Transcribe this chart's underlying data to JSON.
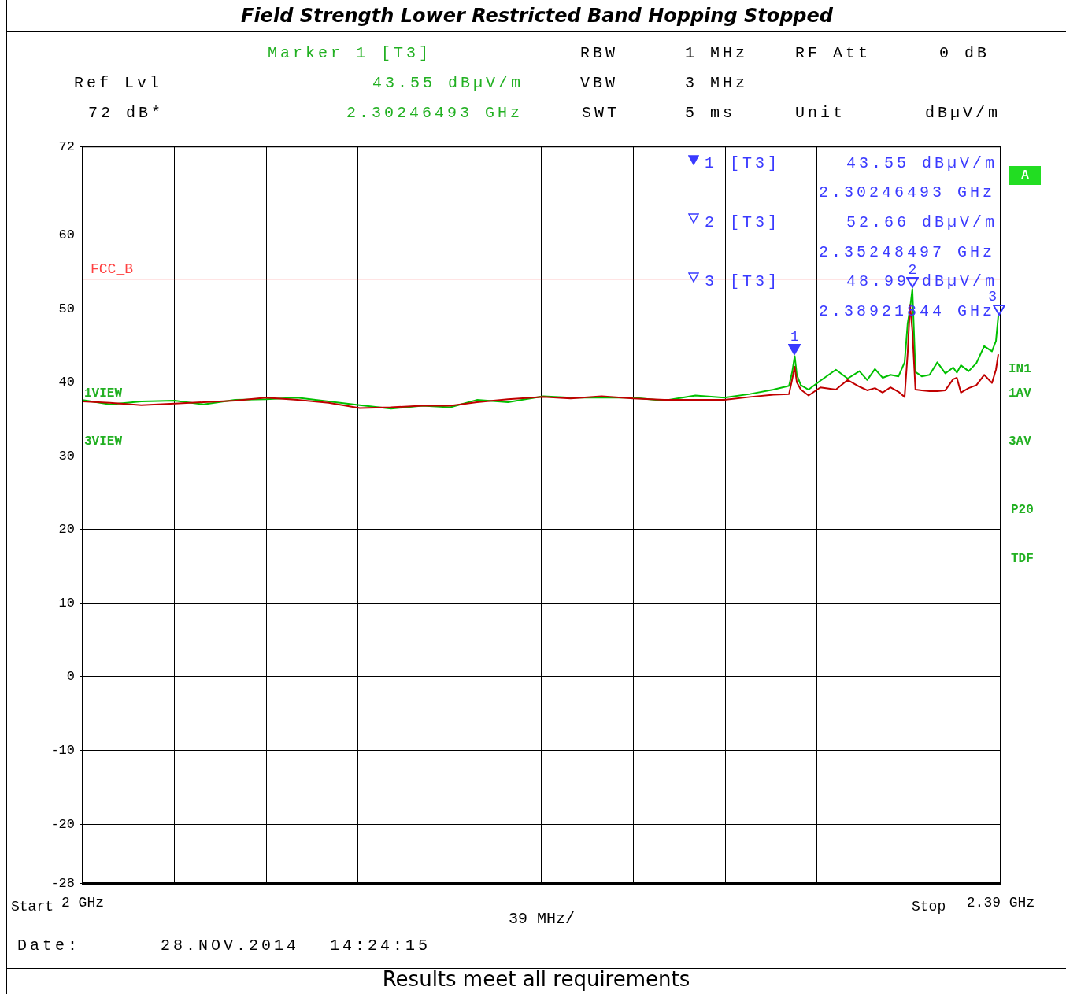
{
  "chart_data": {
    "type": "line",
    "title": "Field Strength Lower Restricted Band Hopping Stopped",
    "x": [
      2.0,
      2.0116,
      2.0249,
      2.0391,
      2.0514,
      2.0647,
      2.0779,
      2.0912,
      2.1045,
      2.1177,
      2.131,
      2.1443,
      2.1562,
      2.1675,
      2.1807,
      2.1957,
      2.2073,
      2.2205,
      2.2338,
      2.2471,
      2.2603,
      2.2726,
      2.2835,
      2.2935,
      2.3001,
      2.3015,
      2.3025,
      2.3034,
      2.3051,
      2.3084,
      2.3134,
      2.32,
      2.325,
      2.33,
      2.3333,
      2.3366,
      2.3399,
      2.3432,
      2.3466,
      2.3492,
      2.3505,
      2.3515,
      2.3525,
      2.3538,
      2.3565,
      2.3598,
      2.3631,
      2.3665,
      2.3698,
      2.3714,
      2.3731,
      2.3764,
      2.3797,
      2.383,
      2.3863,
      2.388,
      2.389
    ],
    "series": [
      {
        "color": "#00c000",
        "values": [
          37.6,
          37.0,
          37.4,
          37.5,
          37.0,
          37.6,
          37.7,
          37.9,
          37.4,
          36.9,
          36.4,
          36.8,
          36.6,
          37.6,
          37.3,
          38.1,
          37.9,
          37.9,
          37.9,
          37.5,
          38.2,
          37.9,
          38.4,
          39.0,
          39.5,
          41.5,
          43.55,
          41.0,
          39.6,
          39.0,
          40.2,
          41.7,
          40.5,
          41.5,
          40.3,
          41.8,
          40.6,
          41.0,
          40.8,
          42.7,
          48.0,
          50.0,
          52.66,
          41.4,
          40.8,
          41.0,
          42.7,
          41.2,
          42.0,
          41.3,
          42.3,
          41.5,
          42.6,
          44.9,
          44.2,
          45.6,
          48.99
        ]
      },
      {
        "color": "#c00000",
        "values": [
          37.4,
          37.2,
          36.9,
          37.1,
          37.3,
          37.5,
          37.9,
          37.6,
          37.2,
          36.5,
          36.6,
          36.8,
          36.8,
          37.3,
          37.7,
          38.0,
          37.8,
          38.1,
          37.8,
          37.6,
          37.6,
          37.6,
          38.0,
          38.3,
          38.4,
          40.5,
          42.1,
          40.0,
          39.0,
          38.2,
          39.3,
          39.0,
          40.3,
          39.4,
          38.9,
          39.2,
          38.6,
          39.3,
          38.7,
          38.0,
          44.0,
          50.5,
          47.0,
          39.0,
          38.9,
          38.8,
          38.8,
          38.9,
          40.4,
          40.6,
          38.6,
          39.2,
          39.6,
          41.0,
          39.9,
          41.7,
          43.8
        ]
      }
    ],
    "xlabel": "39 MHz/",
    "xlim": [
      2,
      2.39
    ],
    "xticks": [
      {
        "value": 2,
        "label": "2 GHz"
      },
      {
        "value": 2.039,
        "label": null
      },
      {
        "value": 2.078,
        "label": null
      },
      {
        "value": 2.117,
        "label": null
      },
      {
        "value": 2.156,
        "label": null
      },
      {
        "value": 2.195,
        "label": null
      },
      {
        "value": 2.234,
        "label": null
      },
      {
        "value": 2.273,
        "label": null
      },
      {
        "value": 2.312,
        "label": null
      },
      {
        "value": 2.351,
        "label": null
      },
      {
        "value": 2.39,
        "label": "2.39 GHz"
      }
    ],
    "ylim": [
      -28,
      72
    ],
    "yticks": [
      72,
      {
        "value": 70,
        "label": null
      },
      60,
      50,
      40,
      30,
      20,
      10,
      0,
      -10,
      -20,
      -28
    ],
    "grid": true,
    "legend": false,
    "marker": "none",
    "line_style": "solid",
    "ref_lines": [
      {
        "axis": "y",
        "value": 54,
        "label": "FCC_B",
        "color": "#ff4040"
      }
    ],
    "annotations": [
      "Marker 1 [T3]",
      "43.55 dBµV/m",
      "2.30246493 GHz",
      "Ref Lvl",
      "72 dB*",
      "RBW",
      "1 MHz",
      "VBW",
      "3 MHz",
      "SWT",
      "5 ms",
      "RF Att",
      "0 dB",
      "Unit",
      "dBµV/m",
      "1 [T3]",
      "43.55 dBµV/m",
      "2.30246493 GHz",
      "2 [T3]",
      "52.66 dBµV/m",
      "2.35248497 GHz",
      "3 [T3]",
      "48.99 dBµV/m",
      "2.38921844 GHz",
      "A",
      "IN1",
      "1AV",
      "3AV",
      "P20",
      "TDF",
      "1VIEW",
      "3VIEW",
      "Date:",
      "28.NOV.2014",
      "14:24:15",
      "Results meet all requirements",
      "Start",
      "Stop",
      {
        "text": "1",
        "x": 2.30246493,
        "y": 43.55
      },
      {
        "text": "2",
        "x": 2.35248497,
        "y": 52.66
      },
      {
        "text": "3",
        "x": 2.38921844,
        "y": 48.99
      }
    ]
  }
}
